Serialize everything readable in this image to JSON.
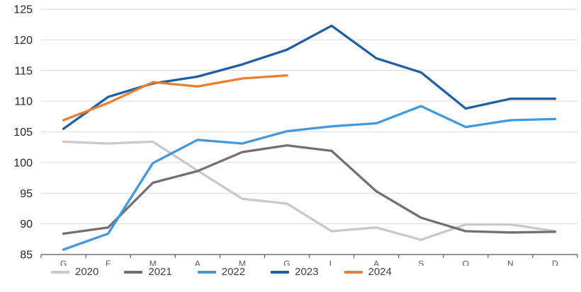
{
  "chart_data": {
    "type": "line",
    "title": "",
    "xlabel": "",
    "ylabel": "",
    "ylim": [
      85,
      125
    ],
    "y_tick_step": 5,
    "y_tick_labels": [
      "85",
      "90",
      "95",
      "100",
      "105",
      "110",
      "115",
      "120",
      "125"
    ],
    "categories": [
      "G",
      "F",
      "M",
      "A",
      "M",
      "G",
      "L",
      "A",
      "S",
      "O",
      "N",
      "D"
    ],
    "grid": true,
    "legend_position": "bottom",
    "series": [
      {
        "name": "2020",
        "color": "#C9C9C9",
        "values": [
          103.4,
          103.1,
          103.4,
          98.7,
          94.1,
          93.3,
          88.8,
          89.4,
          87.4,
          89.9,
          89.9,
          88.8
        ]
      },
      {
        "name": "2021",
        "color": "#757070",
        "values": [
          88.4,
          89.4,
          96.7,
          98.6,
          101.7,
          102.8,
          101.9,
          95.3,
          91.0,
          88.8,
          88.6,
          88.7
        ]
      },
      {
        "name": "2022",
        "color": "#4199E0",
        "values": [
          85.8,
          88.4,
          99.9,
          103.7,
          103.1,
          105.1,
          105.9,
          106.4,
          109.2,
          105.8,
          106.9,
          107.1
        ]
      },
      {
        "name": "2023",
        "color": "#1F5FA6",
        "values": [
          105.5,
          110.7,
          112.9,
          114.0,
          116.0,
          118.4,
          122.3,
          117.0,
          114.7,
          108.8,
          110.4,
          110.4
        ]
      },
      {
        "name": "2024",
        "color": "#ED7D31",
        "values": [
          106.9,
          109.7,
          113.1,
          112.4,
          113.7,
          114.2
        ]
      }
    ],
    "style_colors": {
      "gridline": "#D9D9D9",
      "axis_line": "#595959",
      "y_label_color": "#262626",
      "x_label_color": "#595959"
    }
  }
}
